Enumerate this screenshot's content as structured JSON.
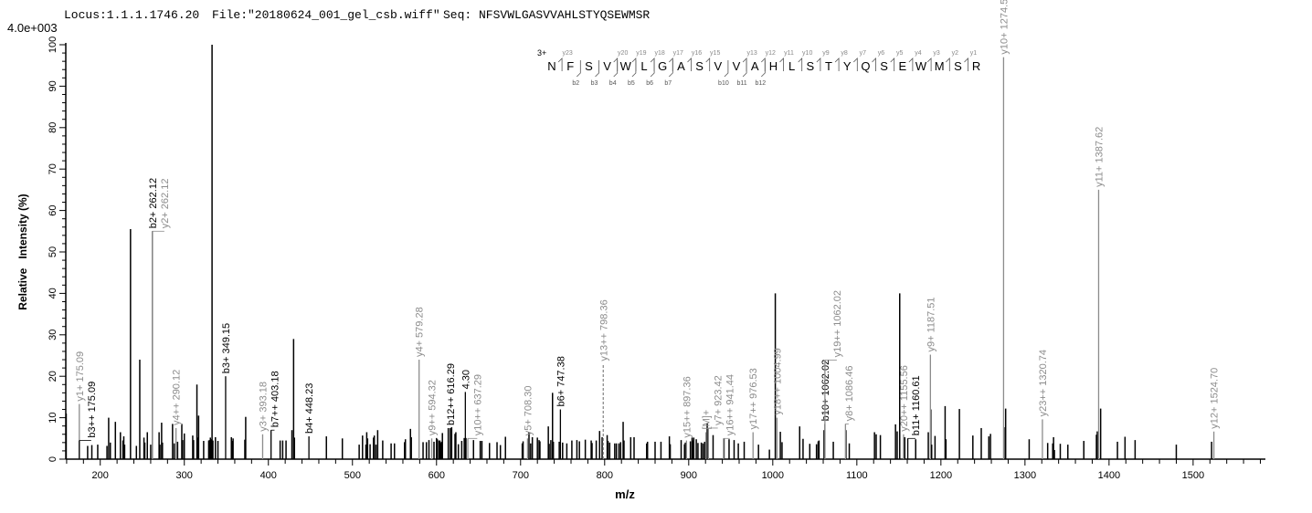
{
  "header": {
    "locus": "Locus:1.1.1.1746.20",
    "file": "File:\"20180624_001_gel_csb.wiff\"",
    "seq": "Seq: NFSVWLGASVVAHLSTYQSEWMSR",
    "scale": "4.0e+003"
  },
  "colors": {
    "b_ion": "#000000",
    "y_ion": "#8c8c8c",
    "peak": "#000000"
  },
  "chart_data": {
    "type": "bar",
    "xlabel": "m/z",
    "ylabel": "Relative   Intensity (%)",
    "xlim": [
      159,
      1586
    ],
    "ylim": [
      0,
      100
    ],
    "x_ticks": [
      "200",
      "300",
      "400",
      "500",
      "600",
      "700",
      "800",
      "900",
      "1000",
      "1100",
      "1200",
      "1300",
      "1400",
      "1500"
    ],
    "y_ticks": [
      "0",
      "10",
      "20",
      "30",
      "40",
      "50",
      "60",
      "70",
      "80",
      "90",
      "100"
    ],
    "grid": false,
    "peaks": [
      [
        159.5,
        11
      ],
      [
        185,
        3.2
      ],
      [
        190,
        3.4
      ],
      [
        197,
        3.5
      ],
      [
        208,
        3.2
      ],
      [
        210,
        10
      ],
      [
        212,
        4
      ],
      [
        218,
        9
      ],
      [
        224,
        6.5
      ],
      [
        227,
        4.5
      ],
      [
        228,
        5.5
      ],
      [
        229,
        3.5
      ],
      [
        236,
        55.5
      ],
      [
        243,
        3.2
      ],
      [
        247,
        24
      ],
      [
        252,
        5.2
      ],
      [
        253,
        4
      ],
      [
        256,
        6.5
      ],
      [
        260,
        3.5
      ],
      [
        270,
        6.5
      ],
      [
        271,
        3.5
      ],
      [
        273,
        8.8
      ],
      [
        274,
        4
      ],
      [
        286,
        8.5
      ],
      [
        288,
        3.8
      ],
      [
        292,
        4.2
      ],
      [
        297,
        8.5
      ],
      [
        298,
        4.6
      ],
      [
        300,
        6.2
      ],
      [
        310,
        5.7
      ],
      [
        311,
        4.6
      ],
      [
        315,
        18
      ],
      [
        316,
        5.2
      ],
      [
        317,
        10.5
      ],
      [
        323,
        4.4
      ],
      [
        329,
        4.5
      ],
      [
        330,
        4.6
      ],
      [
        331,
        5.2
      ],
      [
        332,
        4.8
      ],
      [
        333,
        100
      ],
      [
        334,
        4.5
      ],
      [
        337,
        5.3
      ],
      [
        340,
        4.4
      ],
      [
        356,
        5.3
      ],
      [
        357,
        4.4
      ],
      [
        358,
        5
      ],
      [
        372,
        4.7
      ],
      [
        373,
        10.2
      ],
      [
        414,
        4.5
      ],
      [
        417,
        4.5
      ],
      [
        421,
        4.5
      ],
      [
        428,
        7
      ],
      [
        430,
        29
      ],
      [
        431,
        5.2
      ],
      [
        469,
        5.5
      ],
      [
        488,
        5
      ],
      [
        508,
        3.5
      ],
      [
        512,
        5.7
      ],
      [
        516,
        3.5
      ],
      [
        517,
        6.5
      ],
      [
        518,
        5
      ],
      [
        521,
        3.6
      ],
      [
        525,
        5.2
      ],
      [
        526,
        5.7
      ],
      [
        528,
        3.5
      ],
      [
        530,
        7
      ],
      [
        536,
        4.5
      ],
      [
        546,
        3.8
      ],
      [
        550,
        3.8
      ],
      [
        562,
        4.1
      ],
      [
        563,
        4.8
      ],
      [
        569,
        7.3
      ],
      [
        570,
        5.3
      ],
      [
        584,
        4.1
      ],
      [
        588,
        4.1
      ],
      [
        591,
        4.6
      ],
      [
        597,
        4.2
      ],
      [
        600,
        5.1
      ],
      [
        601,
        4.8
      ],
      [
        603,
        4.5
      ],
      [
        604,
        4.5
      ],
      [
        605,
        3.9
      ],
      [
        606,
        4.2
      ],
      [
        607,
        6.3
      ],
      [
        614,
        7.5
      ],
      [
        618,
        7.7
      ],
      [
        622,
        6.1
      ],
      [
        623,
        6.5
      ],
      [
        626,
        3.6
      ],
      [
        630,
        4.4
      ],
      [
        633,
        5.1
      ],
      [
        635,
        5.1
      ],
      [
        644,
        4.6
      ],
      [
        652,
        4.4
      ],
      [
        654,
        4.4
      ],
      [
        663,
        3.9
      ],
      [
        672,
        4.1
      ],
      [
        676,
        3.4
      ],
      [
        682,
        5.4
      ],
      [
        702,
        3.8
      ],
      [
        703,
        4.3
      ],
      [
        710,
        6.5
      ],
      [
        712,
        3.8
      ],
      [
        714,
        5.3
      ],
      [
        720,
        5.2
      ],
      [
        722,
        4.6
      ],
      [
        723,
        4.3
      ],
      [
        733,
        7.9
      ],
      [
        734,
        3.7
      ],
      [
        736,
        4.6
      ],
      [
        738,
        16
      ],
      [
        739,
        4.2
      ],
      [
        746,
        4.2
      ],
      [
        750,
        4
      ],
      [
        755,
        3.8
      ],
      [
        761,
        4.5
      ],
      [
        767,
        4.6
      ],
      [
        770,
        4.3
      ],
      [
        777,
        4.7
      ],
      [
        784,
        4.5
      ],
      [
        785,
        3.9
      ],
      [
        790,
        4.5
      ],
      [
        794,
        6.8
      ],
      [
        797,
        5.3
      ],
      [
        803,
        5.8
      ],
      [
        804,
        4.4
      ],
      [
        806,
        4
      ],
      [
        812,
        3.8
      ],
      [
        814,
        3.8
      ],
      [
        817,
        3.8
      ],
      [
        819,
        4.1
      ],
      [
        822,
        9
      ],
      [
        823,
        4.5
      ],
      [
        831,
        5.3
      ],
      [
        835,
        5.3
      ],
      [
        850,
        3.8
      ],
      [
        851,
        4.2
      ],
      [
        860,
        4.2
      ],
      [
        867,
        4.2
      ],
      [
        877,
        5.5
      ],
      [
        878,
        3.6
      ],
      [
        891,
        4.6
      ],
      [
        895,
        3.6
      ],
      [
        896,
        4
      ],
      [
        902,
        4.3
      ],
      [
        904,
        5.2
      ],
      [
        905,
        4.5
      ],
      [
        906,
        5.2
      ],
      [
        909,
        4.8
      ],
      [
        911,
        3.9
      ],
      [
        915,
        4
      ],
      [
        917,
        3.8
      ],
      [
        919,
        4.2
      ],
      [
        922,
        8.6
      ],
      [
        929,
        5.8
      ],
      [
        942,
        5
      ],
      [
        948,
        4.8
      ],
      [
        954,
        4.6
      ],
      [
        959,
        3.8
      ],
      [
        966,
        4.2
      ],
      [
        983,
        3.5
      ],
      [
        996,
        2.3
      ],
      [
        1003,
        40
      ],
      [
        1009,
        6.6
      ],
      [
        1011,
        4.1
      ],
      [
        1032,
        7.9
      ],
      [
        1036,
        4.9
      ],
      [
        1044,
        3.7
      ],
      [
        1052,
        3.6
      ],
      [
        1054,
        4.3
      ],
      [
        1055,
        4.5
      ],
      [
        1061,
        7
      ],
      [
        1072,
        4.2
      ],
      [
        1087,
        7
      ],
      [
        1091,
        3.8
      ],
      [
        1121,
        6.5
      ],
      [
        1123,
        6
      ],
      [
        1128,
        5.8
      ],
      [
        1146,
        8.4
      ],
      [
        1148,
        6.7
      ],
      [
        1151,
        40
      ],
      [
        1157,
        5.3
      ],
      [
        1170,
        4.8
      ],
      [
        1185,
        6.5
      ],
      [
        1188,
        12
      ],
      [
        1189,
        3.5
      ],
      [
        1193,
        5.6
      ],
      [
        1205,
        12.8
      ],
      [
        1206,
        4.8
      ],
      [
        1222,
        12.1
      ],
      [
        1238,
        5.7
      ],
      [
        1248,
        7.5
      ],
      [
        1257,
        5.5
      ],
      [
        1259,
        6.1
      ],
      [
        1275,
        7.7
      ],
      [
        1277,
        12.2
      ],
      [
        1305,
        4.8
      ],
      [
        1327,
        3.9
      ],
      [
        1333,
        3.8
      ],
      [
        1334,
        5.3
      ],
      [
        1335,
        2.2
      ],
      [
        1342,
        3.7
      ],
      [
        1351,
        3.5
      ],
      [
        1370,
        4.4
      ],
      [
        1385,
        5.9
      ],
      [
        1386,
        6.7
      ],
      [
        1390,
        12.2
      ],
      [
        1410,
        4.2
      ],
      [
        1419,
        5.4
      ],
      [
        1431,
        4.6
      ],
      [
        1480,
        3.5
      ],
      [
        1522,
        4.2
      ]
    ],
    "annotations": [
      {
        "label": "y1+ 175.09",
        "mz": 175.09,
        "y": 4.5,
        "ion": "y",
        "lift": 40
      },
      {
        "label": "b3++ 175.09",
        "mz": 175.09,
        "y": 4.5,
        "ion": "b",
        "lift": 0
      },
      {
        "label": "b2+ 262.12",
        "mz": 262.12,
        "y": 55,
        "ion": "b",
        "lift": 0
      },
      {
        "label": "y2+ 262.12",
        "mz": 262.12,
        "y": 55,
        "ion": "y",
        "lift": 0,
        "offset": 1
      },
      {
        "label": "y4++ 290.12",
        "mz": 290.12,
        "y": 7.5,
        "ion": "y",
        "lift": 0
      },
      {
        "label": "b3+ 349.15",
        "mz": 349.15,
        "y": 20,
        "ion": "b",
        "lift": 0
      },
      {
        "label": "y3+ 393.18",
        "mz": 393.18,
        "y": 6,
        "ion": "y",
        "lift": 0
      },
      {
        "label": "b7++ 403.18",
        "mz": 403.18,
        "y": 7,
        "ion": "b",
        "lift": 0
      },
      {
        "label": "b4+ 448.23",
        "mz": 448.23,
        "y": 5.5,
        "ion": "b",
        "lift": 0
      },
      {
        "label": "y4+ 579.28",
        "mz": 579.28,
        "y": 24,
        "ion": "y",
        "lift": 0
      },
      {
        "label": "y9++ 594.32",
        "mz": 594.32,
        "y": 5,
        "ion": "y",
        "lift": 0
      },
      {
        "label": "b12++ 616.29",
        "mz": 616.29,
        "y": 7.5,
        "ion": "b",
        "lift": 0
      },
      {
        "label": "4.30",
        "mz": 634.3,
        "y": 5.2,
        "ion": "b",
        "lift": 50
      },
      {
        "label": "y10++ 637.29",
        "mz": 637.29,
        "y": 5,
        "ion": "y",
        "lift": 0
      },
      {
        "label": "y5+ 708.30",
        "mz": 708.3,
        "y": 5,
        "ion": "y",
        "lift": 0
      },
      {
        "label": "b6+ 747.38",
        "mz": 747.38,
        "y": 12,
        "ion": "b",
        "lift": 0
      },
      {
        "label": "y13++ 798.36",
        "mz": 798.36,
        "y": 23,
        "ion": "y",
        "lift": 0,
        "dashed": true
      },
      {
        "label": "y15++ 897.36",
        "mz": 897.36,
        "y": 4.5,
        "ion": "y",
        "lift": 0
      },
      {
        "label": "[M]+",
        "mz": 920.5,
        "y": 6.5,
        "ion": "y",
        "lift": 0
      },
      {
        "label": "y7+ 923.42",
        "mz": 923.42,
        "y": 7.5,
        "ion": "y",
        "lift": 0
      },
      {
        "label": "y16++ 941.44",
        "mz": 941.44,
        "y": 5,
        "ion": "y",
        "lift": 0
      },
      {
        "label": "y17++ 976.53",
        "mz": 976.53,
        "y": 6.5,
        "ion": "y",
        "lift": 0
      },
      {
        "label": "y18++ 1004.99",
        "mz": 1004.99,
        "y": 10,
        "ion": "y",
        "lift": 0
      },
      {
        "label": "b10+ 1062.02",
        "mz": 1062.02,
        "y": 8.5,
        "ion": "b",
        "lift": 0
      },
      {
        "label": "y19++ 1062.02",
        "mz": 1062.02,
        "y": 8.5,
        "ion": "y",
        "lift": 70,
        "offset": 1
      },
      {
        "label": "y8+ 1086.46",
        "mz": 1086.46,
        "y": 8.5,
        "ion": "y",
        "lift": 0
      },
      {
        "label": "y20++ 1155.56",
        "mz": 1155.56,
        "y": 6,
        "ion": "y",
        "lift": 0
      },
      {
        "label": "b11+ 1160.61",
        "mz": 1160.61,
        "y": 5,
        "ion": "b",
        "lift": 0
      },
      {
        "label": "y9+ 1187.51",
        "mz": 1187.51,
        "y": 12,
        "ion": "y",
        "lift": 60
      },
      {
        "label": "y10+ 1274.54",
        "mz": 1274.54,
        "y": 97,
        "ion": "y",
        "lift": 0
      },
      {
        "label": "y23++ 1320.74",
        "mz": 1320.74,
        "y": 3,
        "ion": "y",
        "lift": 30
      },
      {
        "label": "y11+ 1387.62",
        "mz": 1387.62,
        "y": 65,
        "ion": "y",
        "lift": 0
      },
      {
        "label": "y12+ 1524.70",
        "mz": 1524.7,
        "y": 6,
        "ion": "y",
        "lift": 3
      }
    ]
  },
  "sequence": {
    "charge": "3+",
    "residues": [
      "N",
      "F",
      "S",
      "V",
      "W",
      "L",
      "G",
      "A",
      "S",
      "V",
      "V",
      "A",
      "H",
      "L",
      "S",
      "T",
      "Y",
      "Q",
      "S",
      "E",
      "W",
      "M",
      "S",
      "R"
    ],
    "y_ions": [
      23,
      20,
      19,
      18,
      17,
      16,
      15,
      13,
      12,
      11,
      10,
      9,
      8,
      7,
      6,
      5,
      4,
      3,
      2,
      1
    ],
    "b_ions": [
      2,
      3,
      4,
      5,
      6,
      7,
      10,
      11,
      12
    ]
  }
}
